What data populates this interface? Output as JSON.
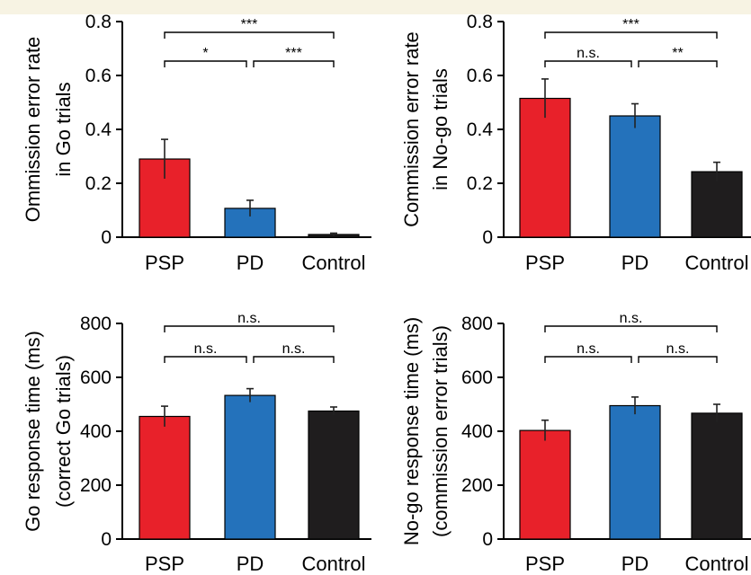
{
  "colors": {
    "PSP": "#e8212a",
    "PD": "#2472bb",
    "Control": "#1f1d1e",
    "background_band": "#f7f3e3"
  },
  "chart_data": [
    {
      "type": "bar",
      "categories": [
        "PSP",
        "PD",
        "Control"
      ],
      "values": [
        0.29,
        0.107,
        0.01
      ],
      "errors": [
        0.073,
        0.03,
        0.005
      ],
      "ylabel": [
        "Ommission error rate",
        "in Go trials"
      ],
      "ylim": [
        0,
        0.8
      ],
      "yticks": [
        0,
        0.2,
        0.4,
        0.6,
        0.8
      ],
      "ytick_labels": [
        "0",
        "0.2",
        "0.4",
        "0.6",
        "0.8"
      ],
      "significance": [
        {
          "from": 0,
          "to": 1,
          "label": "*"
        },
        {
          "from": 1,
          "to": 2,
          "label": "***"
        },
        {
          "from": 0,
          "to": 2,
          "label": "***"
        }
      ]
    },
    {
      "type": "bar",
      "categories": [
        "PSP",
        "PD",
        "Control"
      ],
      "values": [
        0.515,
        0.45,
        0.243
      ],
      "errors": [
        0.072,
        0.045,
        0.035
      ],
      "ylabel": [
        "Commission error rate",
        "in No-go trials"
      ],
      "ylim": [
        0,
        0.8
      ],
      "yticks": [
        0,
        0.2,
        0.4,
        0.6,
        0.8
      ],
      "ytick_labels": [
        "0",
        "0.2",
        "0.4",
        "0.6",
        "0.8"
      ],
      "significance": [
        {
          "from": 0,
          "to": 1,
          "label": "n.s."
        },
        {
          "from": 1,
          "to": 2,
          "label": "**"
        },
        {
          "from": 0,
          "to": 2,
          "label": "***"
        }
      ]
    },
    {
      "type": "bar",
      "categories": [
        "PSP",
        "PD",
        "Control"
      ],
      "values": [
        455,
        533,
        475
      ],
      "errors": [
        38,
        25,
        15
      ],
      "ylabel": [
        "Go response time (ms)",
        "(correct Go trials)"
      ],
      "ylim": [
        0,
        800
      ],
      "yticks": [
        0,
        200,
        400,
        600,
        800
      ],
      "ytick_labels": [
        "0",
        "200",
        "400",
        "600",
        "800"
      ],
      "significance": [
        {
          "from": 0,
          "to": 1,
          "label": "n.s."
        },
        {
          "from": 1,
          "to": 2,
          "label": "n.s."
        },
        {
          "from": 0,
          "to": 2,
          "label": "n.s."
        }
      ]
    },
    {
      "type": "bar",
      "categories": [
        "PSP",
        "PD",
        "Control"
      ],
      "values": [
        403,
        495,
        467
      ],
      "errors": [
        38,
        32,
        33
      ],
      "ylabel": [
        "No-go response time (ms)",
        "(commission error trials)"
      ],
      "ylim": [
        0,
        800
      ],
      "yticks": [
        0,
        200,
        400,
        600,
        800
      ],
      "ytick_labels": [
        "0",
        "200",
        "400",
        "600",
        "800"
      ],
      "significance": [
        {
          "from": 0,
          "to": 1,
          "label": "n.s."
        },
        {
          "from": 1,
          "to": 2,
          "label": "n.s."
        },
        {
          "from": 0,
          "to": 2,
          "label": "n.s."
        }
      ]
    }
  ]
}
